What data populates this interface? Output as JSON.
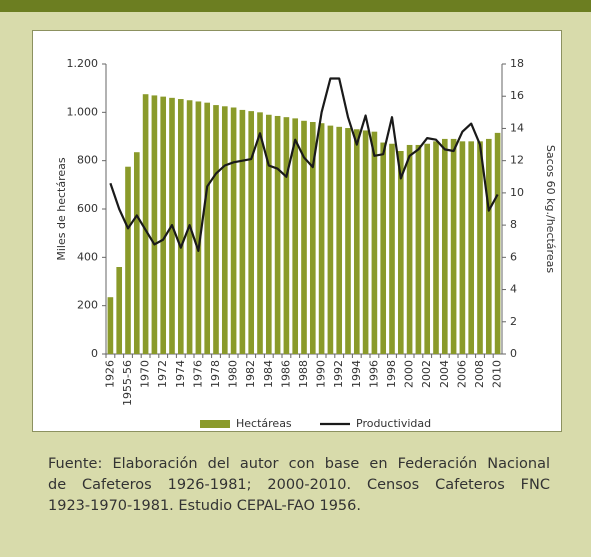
{
  "chart_data": {
    "type": "bar",
    "y_label": "Miles de hectáreas",
    "y2_label": "Sacos 60 kg./hectáreas",
    "categories": [
      "1926",
      null,
      "1955-56",
      null,
      "1970",
      null,
      "1972",
      null,
      "1974",
      null,
      "1976",
      null,
      "1978",
      null,
      "1980",
      null,
      "1982",
      null,
      "1984",
      null,
      "1986",
      null,
      "1988",
      null,
      "1990",
      null,
      "1992",
      null,
      "1994",
      null,
      "1996",
      null,
      "1998",
      null,
      "2000",
      null,
      "2002",
      null,
      "2004",
      null,
      "2006",
      null,
      "2008",
      null,
      "2010"
    ],
    "series": [
      {
        "name": "Hectáreas",
        "type": "bar",
        "color": "#8a9a2a",
        "values": [
          235,
          360,
          775,
          835,
          1075,
          1070,
          1065,
          1060,
          1055,
          1050,
          1045,
          1040,
          1030,
          1025,
          1020,
          1010,
          1005,
          1000,
          990,
          985,
          980,
          975,
          965,
          960,
          955,
          945,
          940,
          935,
          930,
          925,
          920,
          875,
          870,
          840,
          865,
          865,
          870,
          880,
          890,
          890,
          880,
          880,
          880,
          890,
          915
        ]
      },
      {
        "name": "Productividad",
        "type": "line",
        "axis": "y2",
        "color": "#1a1a1a",
        "values": [
          10.6,
          9.0,
          7.8,
          8.6,
          7.7,
          6.8,
          7.1,
          8.0,
          6.6,
          8.0,
          6.4,
          10.4,
          11.2,
          11.7,
          11.9,
          12.0,
          12.1,
          13.7,
          11.7,
          11.5,
          11.0,
          13.3,
          12.2,
          11.6,
          15.0,
          17.1,
          17.1,
          14.7,
          13.0,
          14.8,
          12.3,
          12.4,
          14.7,
          10.9,
          12.3,
          12.7,
          13.4,
          13.3,
          12.7,
          12.6,
          13.8,
          14.3,
          13.0,
          8.9,
          9.9
        ]
      }
    ],
    "ylim": [
      0,
      1200
    ],
    "yticks": [
      0,
      200,
      400,
      600,
      800,
      {
        "value": 1000,
        "label": "1.000"
      },
      {
        "value": 1200,
        "label": "1.200"
      }
    ],
    "y2lim": [
      0,
      18
    ],
    "y2ticks": [
      0,
      2,
      4,
      6,
      8,
      10,
      12,
      14,
      16,
      18
    ],
    "legend": "bottom",
    "caption": [
      "Fuente: Elaboración del autor con base en Federación Nacional",
      "de Cafeteros 1926-1981; 2000-2010. Censos Cafeteros FNC",
      "1923-1970-1981. Estudio CEPAL-FAO 1956."
    ]
  }
}
